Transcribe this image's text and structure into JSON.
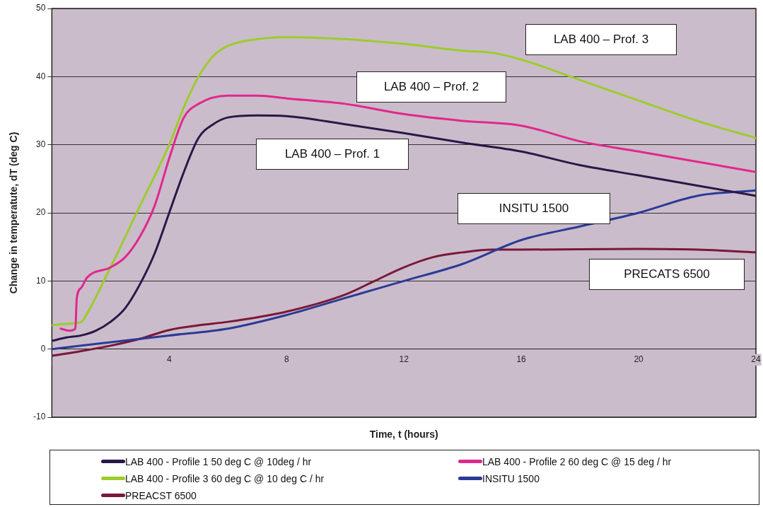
{
  "chart_data": {
    "type": "line",
    "xlabel": "Time, t (hours)",
    "ylabel": "Change in temperatute, dT (deg C)",
    "xlim": [
      0,
      24
    ],
    "xticks": [
      {
        "value": 0,
        "label": null
      },
      4,
      8,
      12,
      16,
      20,
      24
    ],
    "ylim": [
      -10,
      50
    ],
    "yticks": [
      -10,
      0,
      10,
      20,
      30,
      40,
      50
    ],
    "grid": "y",
    "legend": "bottom",
    "marker": "none",
    "line_style": "solid",
    "series": [
      {
        "name": "LAB 400 - Profile 1 50 deg C @ 10deg / hr",
        "color": "#2a1748",
        "x": [
          0,
          0.5,
          1,
          1.5,
          2,
          2.5,
          3,
          3.5,
          4,
          4.5,
          5,
          5.5,
          6,
          7,
          8,
          10,
          12,
          14,
          16,
          18,
          20,
          22,
          24
        ],
        "values": [
          1.2,
          1.7,
          2,
          2.7,
          4,
          6,
          9.5,
          14,
          20,
          26,
          31,
          33,
          34,
          34.3,
          34.2,
          33,
          31.7,
          30.3,
          29,
          27,
          25.5,
          24,
          22.5
        ]
      },
      {
        "name": "LAB 400 - Profile 2 60 deg C @ 15 deg / hr",
        "color": "#e0288c",
        "x": [
          0.3,
          0.6,
          0.8,
          0.85,
          1,
          1.2,
          2,
          2.5,
          3,
          3.5,
          4,
          4.5,
          5,
          6,
          7,
          8,
          10,
          12,
          14,
          16,
          18,
          20,
          22,
          24
        ],
        "values": [
          3,
          2.7,
          3,
          7.5,
          9,
          10.5,
          12,
          13.5,
          16.5,
          21,
          28,
          34,
          36,
          37.2,
          37.2,
          36.8,
          36,
          34.5,
          33.5,
          32.8,
          30.5,
          29,
          27.5,
          26
        ]
      },
      {
        "name": "LAB 400 - Profile 3 60 deg C @ 10 deg C / hr",
        "color": "#9ccc2c",
        "x": [
          0,
          0.5,
          1,
          1.1,
          2,
          3,
          4,
          4.5,
          5,
          5.5,
          6,
          7,
          8,
          10,
          12,
          14,
          15,
          16,
          18,
          20,
          22,
          24
        ],
        "values": [
          3.5,
          3.7,
          4,
          4.5,
          12,
          21,
          30,
          35.5,
          40,
          43,
          44.5,
          45.5,
          45.8,
          45.5,
          44.8,
          43.8,
          43.5,
          42.5,
          39.5,
          36.5,
          33.5,
          31
        ]
      },
      {
        "name": "INSITU 1500",
        "color": "#2a3a96",
        "x": [
          0,
          2,
          4,
          6,
          8,
          10,
          12,
          14,
          16,
          18,
          20,
          22,
          24
        ],
        "values": [
          0,
          1,
          2,
          3,
          5,
          7.5,
          10,
          12.5,
          16,
          18,
          20,
          22.5,
          23.3
        ]
      },
      {
        "name": "PREACST 6500",
        "color": "#7a1838",
        "x": [
          0,
          1,
          2,
          3,
          4,
          5,
          6,
          8,
          10,
          11,
          12,
          13,
          14,
          15,
          16,
          20,
          22,
          24
        ],
        "values": [
          -1,
          -0.3,
          0.5,
          1.5,
          2.8,
          3.5,
          4,
          5.5,
          8,
          10,
          12,
          13.5,
          14.2,
          14.6,
          14.6,
          14.7,
          14.6,
          14.2
        ]
      }
    ],
    "annotations": [
      "LAB 400 – Prof. 3",
      "LAB 400 – Prof. 2",
      "LAB 400 – Prof. 1",
      "INSITU 1500",
      "PRECATS 6500"
    ]
  }
}
